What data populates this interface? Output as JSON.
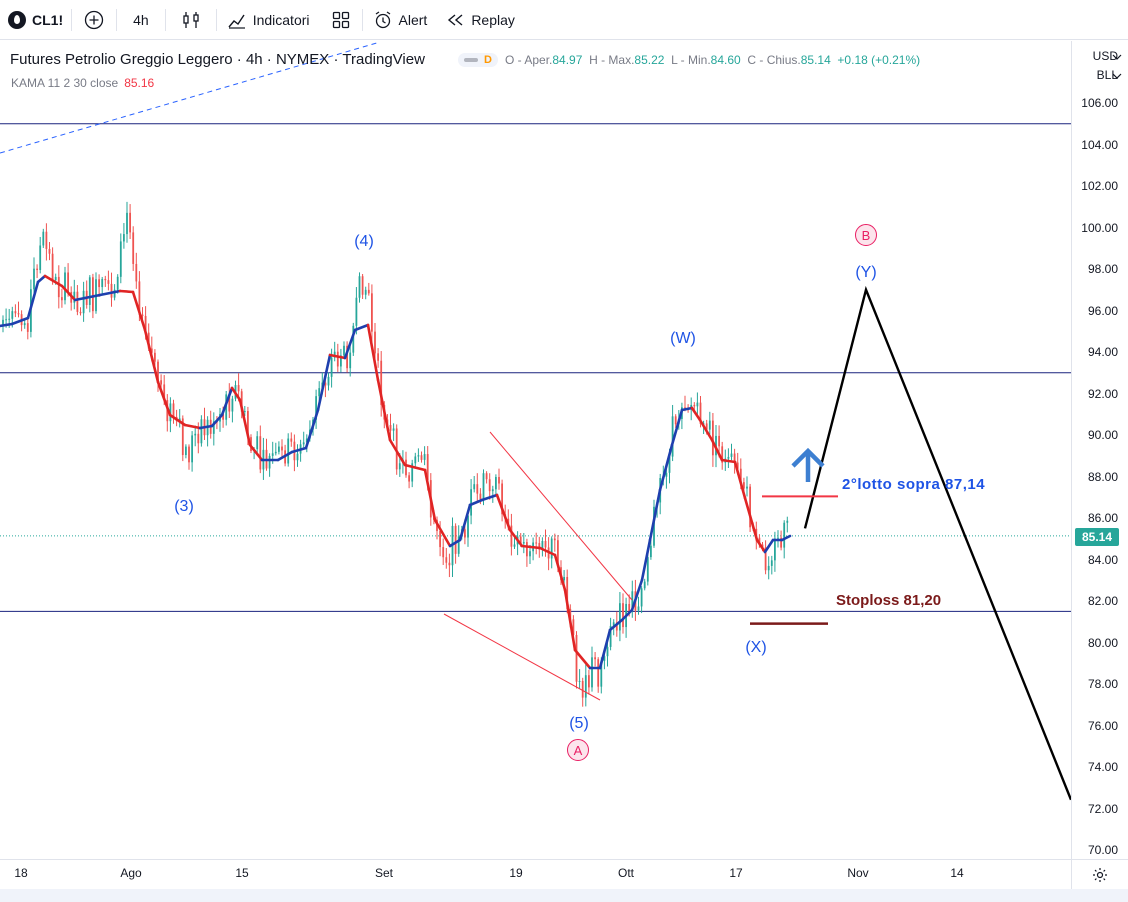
{
  "toolbar": {
    "symbol": "CL1!",
    "interval": "4h",
    "indicators_label": "Indicatori",
    "alert_label": "Alert",
    "replay_label": "Replay"
  },
  "legend": {
    "title": "Futures Petrolio Greggio Leggero · 4h · NYMEX · TradingView",
    "badge": "D",
    "o_label": "O - Aper.",
    "o_val": "84.97",
    "h_label": "H - Max.",
    "h_val": "85.22",
    "l_label": "L - Min.",
    "l_val": "84.60",
    "c_label": "C - Chius.",
    "c_val": "85.14",
    "change": "+0.18 (+0.21%)"
  },
  "indicator": {
    "label": "KAMA 11 2 30 close",
    "value": "85.16"
  },
  "price_axis": {
    "currency": "USD",
    "unit": "BLL",
    "ticks": [
      "106.00",
      "104.00",
      "102.00",
      "100.00",
      "98.00",
      "96.00",
      "94.00",
      "92.00",
      "90.00",
      "88.00",
      "86.00",
      "84.00",
      "82.00",
      "80.00",
      "78.00",
      "76.00",
      "74.00",
      "72.00",
      "70.00"
    ],
    "current_price": "85.14"
  },
  "time_axis": {
    "ticks": [
      "18",
      "Ago",
      "15",
      "Set",
      "19",
      "Ott",
      "17",
      "Nov",
      "14"
    ]
  },
  "annotations": {
    "wave_3": "(3)",
    "wave_4": "(4)",
    "wave_5": "(5)",
    "wave_A": "A",
    "wave_W": "(W)",
    "wave_X": "(X)",
    "wave_Y": "(Y)",
    "wave_B": "B",
    "second_lot": "2°lotto sopra 87,14",
    "stoploss": "Stoploss 81,20"
  },
  "colors": {
    "up": "#26a69a",
    "down": "#ef5350",
    "kama_up": "#1e3fae",
    "kama_down": "#e02424",
    "label_blue": "#1e53e5",
    "circle_pink": "#e91e63"
  },
  "chart_data": {
    "type": "line",
    "title": "Futures Petrolio Greggio Leggero · 4h · NYMEX · TradingView",
    "price_range": [
      69.5,
      107
    ],
    "last_price": 85.14,
    "horizontal_levels": [
      105.0,
      93.0,
      85.14,
      81.5
    ],
    "kama_path": [
      {
        "x": "18",
        "y": 95.2
      },
      {
        "x": "Ago",
        "y": 96.8
      },
      {
        "x": "15",
        "y": 89.0
      },
      {
        "x": "Set",
        "y": 93.7
      },
      {
        "x": "19",
        "y": 85.0
      },
      {
        "x": "Ott",
        "y": 81.0
      },
      {
        "x": "17",
        "y": 86.5
      }
    ],
    "projection": [
      {
        "label": "start",
        "y": 85.5
      },
      {
        "label": "(Y)",
        "y": 97.0
      },
      {
        "label": "end",
        "y": 73.0
      }
    ],
    "targets": {
      "second_lot": 87.14,
      "stoploss": 81.2
    }
  }
}
